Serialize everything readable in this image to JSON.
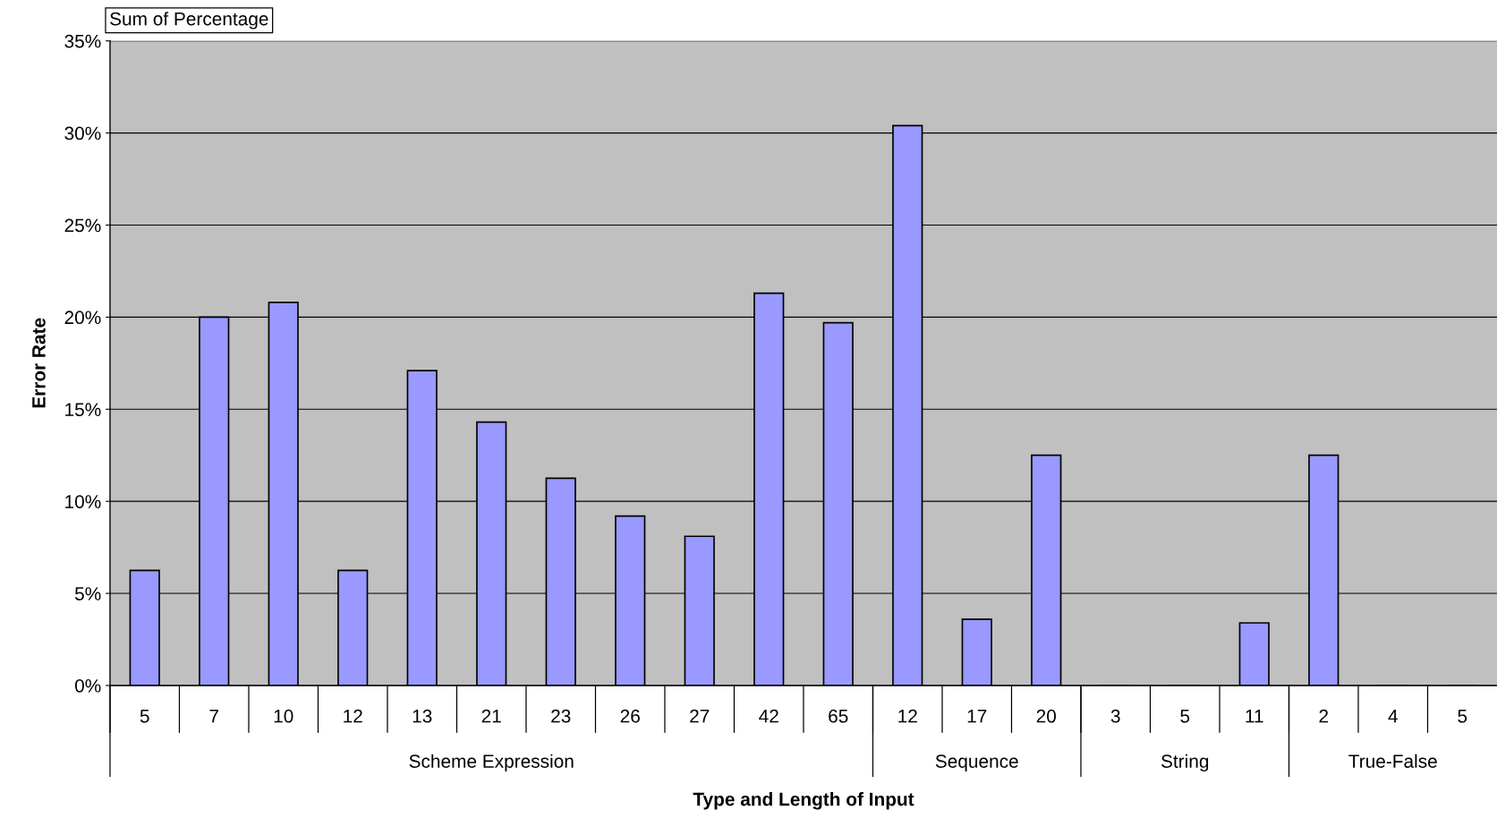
{
  "chart_data": {
    "type": "bar",
    "title": "Sum of Percentage",
    "xlabel": "Type and Length of Input",
    "ylabel": "Error Rate",
    "categories": [
      "5",
      "7",
      "10",
      "12",
      "13",
      "21",
      "23",
      "26",
      "27",
      "42",
      "65",
      "12",
      "17",
      "20",
      "3",
      "5",
      "11",
      "2",
      "4",
      "5"
    ],
    "values": [
      6.25,
      20.0,
      20.8,
      6.25,
      17.1,
      14.3,
      11.25,
      9.2,
      8.1,
      21.3,
      19.7,
      30.4,
      3.6,
      12.5,
      0,
      0,
      3.4,
      12.5,
      0,
      0
    ],
    "color": "#9999ff",
    "annotations": [
      "Scheme Expression",
      "Sequence",
      "String",
      "True-False"
    ],
    "ylim": [
      0,
      35
    ],
    "yticks": [
      {
        "value": 0,
        "label": "0%"
      },
      {
        "value": 5,
        "label": "5%"
      },
      {
        "value": 10,
        "label": "10%"
      },
      {
        "value": 15,
        "label": "15%"
      },
      {
        "value": 20,
        "label": "20%"
      },
      {
        "value": 25,
        "label": "25%"
      },
      {
        "value": 30,
        "label": "30%"
      },
      {
        "value": 35,
        "label": "35%"
      }
    ],
    "grid": "y"
  }
}
